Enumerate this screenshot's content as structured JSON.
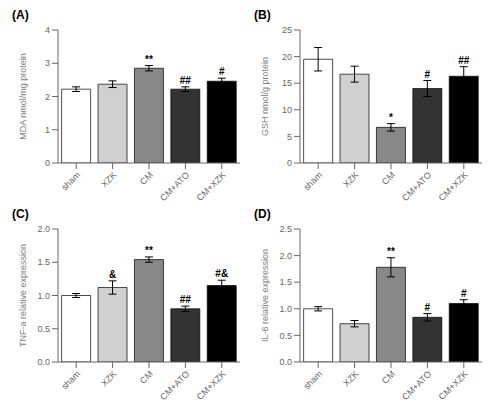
{
  "chart_data": [
    {
      "type": "bar",
      "title": "(A)",
      "y_label": "MDA nmol/mg protein",
      "categories": [
        "sham",
        "XZK",
        "CM",
        "CM+ATO",
        "CM+XZK"
      ],
      "values": [
        2.22,
        2.37,
        2.85,
        2.22,
        2.46
      ],
      "errors": [
        0.07,
        0.1,
        0.08,
        0.07,
        0.09
      ],
      "colors": [
        "#ffffff",
        "#d0d0d0",
        "#888888",
        "#333333",
        "#000000"
      ],
      "ylim": [
        0,
        4.0
      ],
      "yticks": [
        0,
        1,
        2,
        3,
        4
      ],
      "annotations": [
        {
          "category": "CM",
          "text": "**"
        },
        {
          "category": "CM+ATO",
          "text": "##"
        },
        {
          "category": "CM+XZK",
          "text": "#"
        }
      ],
      "grid": false
    },
    {
      "type": "bar",
      "title": "(B)",
      "y_label": "GSH nmol/g protein",
      "categories": [
        "sham",
        "XZK",
        "CM",
        "CM+ATO",
        "CM+XZK"
      ],
      "values": [
        19.5,
        16.7,
        6.7,
        14.0,
        16.3
      ],
      "errors": [
        2.2,
        1.5,
        0.7,
        1.5,
        1.8
      ],
      "colors": [
        "#ffffff",
        "#d0d0d0",
        "#888888",
        "#333333",
        "#000000"
      ],
      "ylim": [
        0,
        25
      ],
      "yticks": [
        0,
        5,
        10,
        15,
        20,
        25
      ],
      "annotations": [
        {
          "category": "CM",
          "text": "*"
        },
        {
          "category": "CM+ATO",
          "text": "#"
        },
        {
          "category": "CM+XZK",
          "text": "##"
        }
      ],
      "grid": false
    },
    {
      "type": "bar",
      "title": "(C)",
      "y_label": "TNF-a relative expression",
      "categories": [
        "sham",
        "XZK",
        "CM",
        "CM+ATO",
        "CM+XZK"
      ],
      "values": [
        1.0,
        1.12,
        1.54,
        0.8,
        1.15
      ],
      "errors": [
        0.03,
        0.1,
        0.04,
        0.04,
        0.08
      ],
      "colors": [
        "#ffffff",
        "#d0d0d0",
        "#888888",
        "#333333",
        "#000000"
      ],
      "ylim": [
        0,
        2.0
      ],
      "yticks": [
        {
          "value": 0,
          "label": "0.0"
        },
        {
          "value": 0.5,
          "label": "0.5"
        },
        {
          "value": 1.0,
          "label": "1.0"
        },
        {
          "value": 1.5,
          "label": "1.5"
        },
        {
          "value": 2.0,
          "label": "2.0"
        }
      ],
      "annotations": [
        {
          "category": "XZK",
          "text": "&"
        },
        {
          "category": "CM",
          "text": "**"
        },
        {
          "category": "CM+ATO",
          "text": "##"
        },
        {
          "category": "CM+XZK",
          "text": "#&"
        }
      ],
      "grid": false
    },
    {
      "type": "bar",
      "title": "(D)",
      "y_label": "IL-6 relative expression",
      "categories": [
        "sham",
        "XZK",
        "CM",
        "CM+ATO",
        "CM+XZK"
      ],
      "values": [
        1.0,
        0.72,
        1.78,
        0.84,
        1.1
      ],
      "errors": [
        0.04,
        0.06,
        0.18,
        0.07,
        0.07
      ],
      "colors": [
        "#ffffff",
        "#d0d0d0",
        "#888888",
        "#333333",
        "#000000"
      ],
      "ylim": [
        0,
        2.5
      ],
      "yticks": [
        {
          "value": 0,
          "label": "0.0"
        },
        {
          "value": 0.5,
          "label": "0.5"
        },
        {
          "value": 1.0,
          "label": "1.0"
        },
        {
          "value": 1.5,
          "label": "1.5"
        },
        {
          "value": 2.0,
          "label": "2.0"
        },
        {
          "value": 2.5,
          "label": "2.5"
        }
      ],
      "annotations": [
        {
          "category": "CM",
          "text": "**"
        },
        {
          "category": "CM+ATO",
          "text": "#"
        },
        {
          "category": "CM+XZK",
          "text": "#"
        }
      ],
      "grid": false
    }
  ]
}
